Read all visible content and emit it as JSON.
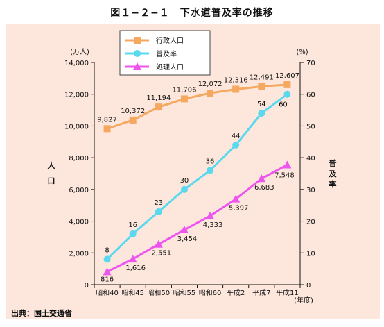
{
  "page": {
    "title": "図１−２−１　下水道普及率の推移",
    "source": "出典：国土交通省"
  },
  "chart_data": {
    "type": "line",
    "categories": [
      "昭和40",
      "昭和45",
      "昭和50",
      "昭和55",
      "昭和60",
      "平成2",
      "平成7",
      "平成11"
    ],
    "x_unit_label": "(年度)",
    "y_left": {
      "label": "人口",
      "unit_label": "(万人)",
      "range": [
        0,
        14000
      ],
      "ticks": [
        "0",
        "2,000",
        "4,000",
        "6,000",
        "8,000",
        "10,000",
        "12,000",
        "14,000"
      ],
      "tick_values": [
        0,
        2000,
        4000,
        6000,
        8000,
        10000,
        12000,
        14000
      ]
    },
    "y_right": {
      "label": "普及率",
      "unit_label": "(%)",
      "range": [
        0,
        70
      ],
      "ticks": [
        "0",
        "10",
        "20",
        "30",
        "40",
        "50",
        "60",
        "70"
      ],
      "tick_values": [
        0,
        10,
        20,
        30,
        40,
        50,
        60,
        70
      ]
    },
    "series": [
      {
        "name": "行政人口",
        "axis": "left",
        "color": "#f5a860",
        "marker": "square",
        "values": [
          9827,
          10372,
          11194,
          11706,
          12072,
          12316,
          12491,
          12607
        ],
        "labels": [
          "9,827",
          "10,372",
          "11,194",
          "11,706",
          "12,072",
          "12,316",
          "12,491",
          "12,607"
        ]
      },
      {
        "name": "普及率",
        "axis": "right",
        "color": "#5ad8ee",
        "marker": "circle",
        "values": [
          8,
          16,
          23,
          30,
          36,
          44,
          54,
          60
        ],
        "labels": [
          "8",
          "16",
          "23",
          "30",
          "36",
          "44",
          "54",
          "60"
        ]
      },
      {
        "name": "処理人口",
        "axis": "left",
        "color": "#ee55ee",
        "marker": "triangle",
        "values": [
          816,
          1616,
          2551,
          3454,
          4333,
          5397,
          6683,
          7548
        ],
        "labels": [
          "816",
          "1,616",
          "2,551",
          "3,454",
          "4,333",
          "5,397",
          "6,683",
          "7,548"
        ]
      }
    ],
    "legend": {
      "placement": "top-left"
    },
    "grid": false
  }
}
